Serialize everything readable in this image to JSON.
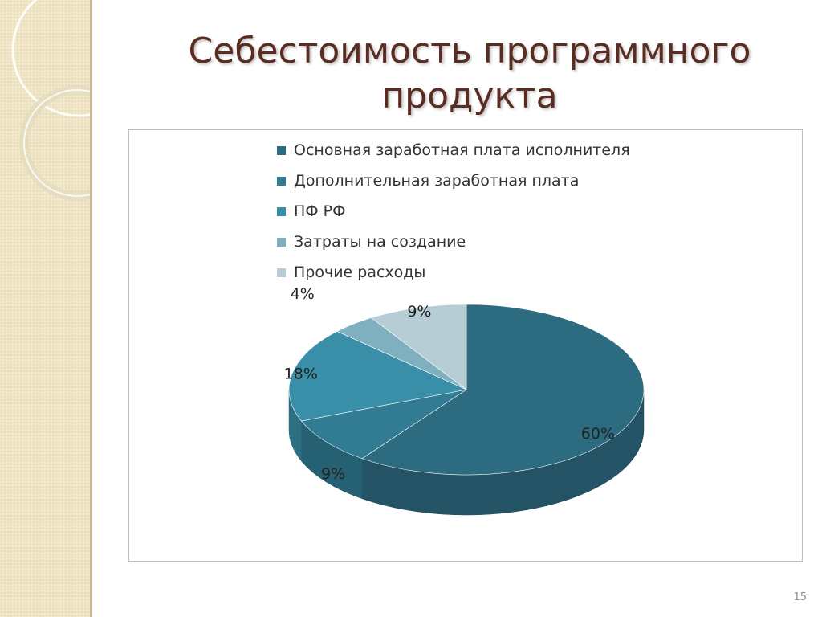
{
  "slide": {
    "title_line1": "Себестоимость программного",
    "title_line2": "продукта",
    "page_number": "15"
  },
  "chart_data": {
    "type": "pie",
    "style": "3d-pie",
    "categories": [
      "Основная заработная плата исполнителя",
      "Дополнительная заработная плата",
      "ПФ РФ",
      "Затраты на создание",
      "Прочие расходы"
    ],
    "values": [
      60,
      9,
      18,
      4,
      9
    ],
    "value_labels": [
      "60%",
      "9%",
      "18%",
      "4%",
      "9%"
    ],
    "colors": [
      "#2d6b80",
      "#317b93",
      "#3a8fa8",
      "#7fb0c0",
      "#b6cdd6"
    ],
    "legend_placement": "top"
  },
  "colors": {
    "title": "#5a2c22",
    "sidebar": "#f1e6c6"
  }
}
